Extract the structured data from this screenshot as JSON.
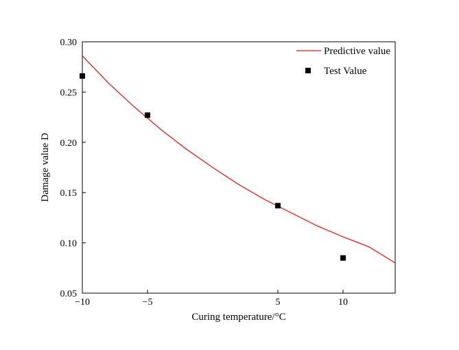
{
  "chart_data": {
    "type": "scatter",
    "xlabel": "Curing temperature/°C",
    "ylabel": "Damage value D",
    "xlim": [
      -10,
      14
    ],
    "ylim": [
      0.05,
      0.3
    ],
    "x_ticks": [
      -10,
      -5,
      5,
      10
    ],
    "y_ticks": [
      0.05,
      0.1,
      0.15,
      0.2,
      0.25,
      0.3
    ],
    "y_tick_labels": [
      "0.05",
      "0.10",
      "0.15",
      "0.20",
      "0.25",
      "0.30"
    ],
    "grid": false,
    "legend_position": "top-right",
    "series": [
      {
        "name": "Predictive value",
        "kind": "line",
        "color": "#e01b1b",
        "x": [
          -10,
          -8,
          -6,
          -4,
          -2,
          0,
          2,
          4,
          6,
          8,
          10,
          12,
          14
        ],
        "y": [
          0.286,
          0.259,
          0.235,
          0.213,
          0.193,
          0.175,
          0.158,
          0.143,
          0.13,
          0.117,
          0.106,
          0.096,
          0.08
        ]
      },
      {
        "name": "Test Value",
        "kind": "scatter",
        "color": "#000000",
        "x": [
          -10,
          -5,
          5,
          10
        ],
        "y": [
          0.266,
          0.227,
          0.137,
          0.085
        ]
      }
    ]
  }
}
